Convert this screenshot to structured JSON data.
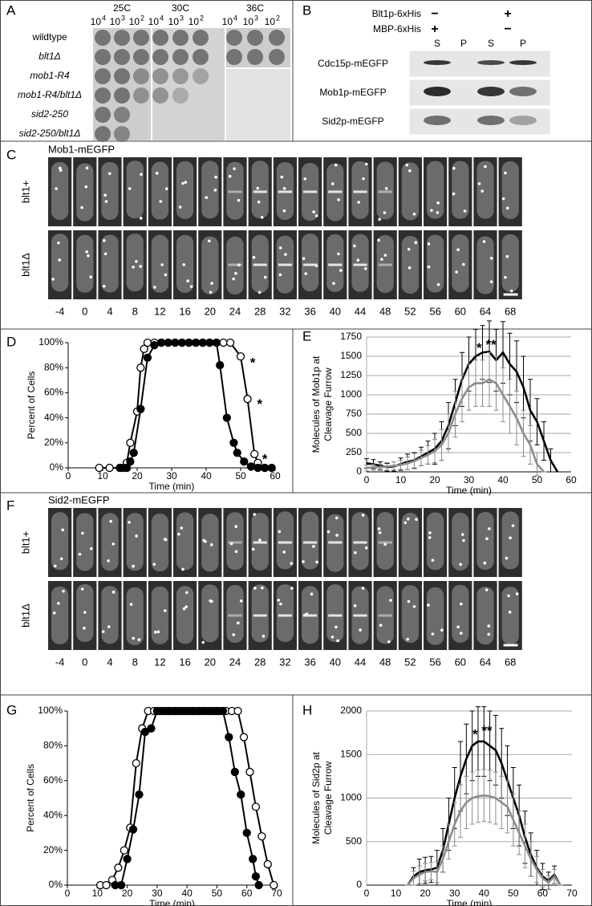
{
  "panel_a": {
    "label": "A",
    "temps": [
      "25C",
      "30C",
      "36C"
    ],
    "dilutions": [
      {
        "base": "10",
        "exp": "4"
      },
      {
        "base": "10",
        "exp": "3"
      },
      {
        "base": "10",
        "exp": "2"
      }
    ],
    "strains": [
      "wildtype",
      "blt1Δ",
      "mob1-R4",
      "mob1-R4/blt1Δ",
      "sid2-250",
      "sid2-250/blt1Δ"
    ]
  },
  "panel_b": {
    "label": "B",
    "conditions": [
      {
        "name": "Blt1p-6xHis",
        "states": [
          "−",
          "+"
        ]
      },
      {
        "name": "MBP-6xHis",
        "states": [
          "+",
          "−"
        ]
      }
    ],
    "fractions": [
      "S",
      "P",
      "S",
      "P"
    ],
    "blots": [
      "Cdc15p-mEGFP",
      "Mob1p-mEGFP",
      "Sid2p-mEGFP"
    ]
  },
  "panel_c": {
    "label": "C",
    "title": "Mob1-mEGFP",
    "rows": [
      "blt1+",
      "blt1Δ"
    ],
    "times": [
      -4,
      0,
      4,
      8,
      12,
      16,
      20,
      24,
      28,
      32,
      36,
      40,
      44,
      48,
      52,
      56,
      60,
      64,
      68
    ]
  },
  "panel_f": {
    "label": "F",
    "title": "Sid2-mEGFP",
    "rows": [
      "blt1+",
      "blt1Δ"
    ],
    "times": [
      -4,
      0,
      4,
      8,
      12,
      16,
      20,
      24,
      28,
      32,
      36,
      40,
      44,
      48,
      52,
      56,
      60,
      64,
      68
    ]
  },
  "chart_data": [
    {
      "label": "D",
      "type": "line",
      "xlabel": "Time (min)",
      "ylabel": "Percent of Cells",
      "xlim": [
        0,
        60
      ],
      "xticks": [
        0,
        10,
        20,
        30,
        40,
        50,
        60
      ],
      "ylim": [
        0,
        100
      ],
      "yticks": [
        {
          "value": 0,
          "label": "0%"
        },
        {
          "value": 20,
          "label": "20%"
        },
        {
          "value": 40,
          "label": "40%"
        },
        {
          "value": 60,
          "label": "60%"
        },
        {
          "value": 80,
          "label": "80%"
        },
        {
          "value": 100,
          "label": "100%"
        }
      ],
      "series": [
        {
          "marker": "open",
          "color": "#000000",
          "x": [
            9,
            12,
            15,
            17,
            18,
            20,
            21,
            22,
            23,
            25,
            27,
            29,
            31,
            33,
            35,
            37,
            39,
            41,
            43,
            45,
            47,
            50,
            52,
            54,
            55,
            57
          ],
          "values": [
            0,
            0,
            0,
            4,
            20,
            45,
            80,
            95,
            100,
            100,
            100,
            100,
            100,
            100,
            100,
            100,
            100,
            100,
            100,
            100,
            100,
            89,
            55,
            11,
            4,
            0
          ]
        },
        {
          "marker": "filled",
          "color": "#000000",
          "x": [
            15,
            16,
            17,
            18,
            19,
            21,
            23,
            25,
            27,
            29,
            31,
            33,
            35,
            37,
            39,
            41,
            43,
            44,
            46,
            48,
            49,
            51,
            53,
            55,
            57,
            59
          ],
          "values": [
            0,
            0,
            0,
            5,
            12,
            47,
            88,
            98,
            100,
            100,
            100,
            100,
            100,
            100,
            100,
            100,
            100,
            82,
            40,
            20,
            12,
            5,
            1,
            0,
            0,
            0
          ]
        }
      ],
      "annotations": [
        {
          "text": "*",
          "x": 53.5,
          "y": 86
        },
        {
          "text": "*",
          "x": 55.5,
          "y": 53
        },
        {
          "text": "*",
          "x": 57,
          "y": 9
        }
      ]
    },
    {
      "label": "E",
      "type": "line",
      "xlabel": "Time (min)",
      "ylabel_lines": [
        "Molecules of Mob1p at",
        "Cleavage Furrow"
      ],
      "xlim": [
        0,
        60
      ],
      "xticks": [
        0,
        10,
        20,
        30,
        40,
        50,
        60
      ],
      "ylim": [
        0,
        1750
      ],
      "yticks": [
        0,
        250,
        500,
        750,
        1000,
        1250,
        1500,
        1750
      ],
      "grid": true,
      "x": [
        0,
        2,
        4,
        6,
        8,
        10,
        12,
        14,
        16,
        18,
        20,
        22,
        24,
        26,
        28,
        30,
        32,
        34,
        36,
        38,
        40,
        42,
        44,
        46,
        48,
        50,
        52,
        54,
        56
      ],
      "series": [
        {
          "color": "#000000",
          "values": [
            110,
            100,
            80,
            60,
            70,
            100,
            130,
            150,
            200,
            250,
            300,
            400,
            600,
            900,
            1200,
            1400,
            1500,
            1550,
            1560,
            1450,
            1550,
            1400,
            1300,
            1100,
            800,
            650,
            400,
            150,
            0
          ],
          "yerr": [
            60,
            60,
            50,
            50,
            60,
            80,
            100,
            100,
            120,
            150,
            200,
            250,
            300,
            300,
            350,
            350,
            350,
            350,
            400,
            400,
            400,
            400,
            400,
            400,
            400,
            300,
            250,
            150,
            0
          ]
        },
        {
          "color": "#8c8c8c",
          "values": [
            50,
            60,
            60,
            70,
            80,
            90,
            110,
            140,
            180,
            220,
            270,
            350,
            500,
            750,
            950,
            1100,
            1150,
            1150,
            1200,
            1150,
            1000,
            850,
            700,
            500,
            350,
            100,
            0,
            null,
            null
          ],
          "yerr": [
            40,
            40,
            40,
            50,
            50,
            60,
            80,
            100,
            100,
            120,
            150,
            200,
            250,
            300,
            300,
            300,
            300,
            300,
            350,
            350,
            350,
            350,
            350,
            300,
            250,
            150,
            0,
            null,
            null
          ]
        }
      ],
      "annotations": [
        {
          "text": "*",
          "x": 33,
          "y": 1640
        },
        {
          "text": "**",
          "x": 36.5,
          "y": 1680
        }
      ]
    },
    {
      "label": "G",
      "type": "line",
      "xlabel": "Time (min)",
      "ylabel": "Percent of Cells",
      "xlim": [
        0,
        70
      ],
      "xticks": [
        0,
        10,
        20,
        30,
        40,
        50,
        60,
        70
      ],
      "ylim": [
        0,
        100
      ],
      "yticks": [
        {
          "value": 0,
          "label": "0%"
        },
        {
          "value": 20,
          "label": "20%"
        },
        {
          "value": 40,
          "label": "40%"
        },
        {
          "value": 60,
          "label": "60%"
        },
        {
          "value": 80,
          "label": "80%"
        },
        {
          "value": 100,
          "label": "100%"
        }
      ],
      "series": [
        {
          "marker": "open",
          "color": "#000000",
          "x": [
            11,
            13,
            15,
            17,
            19,
            21,
            23,
            25,
            27,
            29,
            31,
            33,
            35,
            37,
            39,
            41,
            43,
            45,
            47,
            49,
            51,
            53,
            55,
            57,
            59,
            61,
            63,
            65,
            67,
            69
          ],
          "values": [
            0,
            0,
            3,
            10,
            20,
            33,
            70,
            90,
            100,
            100,
            100,
            100,
            100,
            100,
            100,
            100,
            100,
            100,
            100,
            100,
            100,
            100,
            100,
            100,
            85,
            65,
            45,
            28,
            12,
            0
          ]
        },
        {
          "marker": "filled",
          "color": "#000000",
          "x": [
            16,
            18,
            20,
            22,
            24,
            26,
            28,
            30,
            32,
            34,
            36,
            38,
            40,
            42,
            44,
            46,
            48,
            50,
            52,
            54,
            56,
            58,
            60,
            62,
            63,
            64
          ],
          "values": [
            0,
            0,
            15,
            32,
            52,
            88,
            90,
            100,
            100,
            100,
            100,
            100,
            100,
            100,
            100,
            100,
            100,
            100,
            100,
            85,
            65,
            52,
            30,
            15,
            5,
            0
          ]
        }
      ]
    },
    {
      "label": "H",
      "type": "line",
      "xlabel": "Time (min)",
      "ylabel_lines": [
        "Molecules of Sid2p at",
        "Cleavage Furrow"
      ],
      "xlim": [
        0,
        70
      ],
      "xticks": [
        0,
        10,
        20,
        30,
        40,
        50,
        60,
        70
      ],
      "ylim": [
        0,
        2000
      ],
      "yticks": [
        0,
        500,
        1000,
        1500,
        2000
      ],
      "grid": true,
      "x": [
        14,
        16,
        18,
        20,
        22,
        24,
        26,
        28,
        30,
        32,
        34,
        36,
        38,
        40,
        42,
        44,
        46,
        48,
        50,
        52,
        54,
        56,
        58,
        60,
        62,
        64,
        66
      ],
      "series": [
        {
          "color": "#000000",
          "values": [
            0,
            100,
            150,
            170,
            180,
            200,
            400,
            700,
            1000,
            1250,
            1450,
            1600,
            1650,
            1650,
            1600,
            1550,
            1400,
            1200,
            1000,
            800,
            550,
            350,
            200,
            100,
            50,
            120,
            0
          ],
          "yerr": [
            0,
            100,
            150,
            150,
            150,
            200,
            250,
            300,
            350,
            400,
            400,
            400,
            400,
            400,
            400,
            400,
            400,
            400,
            350,
            350,
            300,
            250,
            200,
            150,
            100,
            100,
            0
          ]
        },
        {
          "color": "#8c8c8c",
          "values": [
            0,
            80,
            120,
            150,
            160,
            150,
            300,
            500,
            700,
            850,
            950,
            1000,
            1020,
            1030,
            1020,
            1000,
            950,
            900,
            750,
            600,
            450,
            300,
            180,
            80,
            30,
            100,
            0
          ],
          "yerr": [
            0,
            80,
            100,
            100,
            100,
            120,
            150,
            200,
            250,
            300,
            300,
            300,
            300,
            300,
            300,
            300,
            300,
            300,
            300,
            250,
            250,
            200,
            150,
            100,
            80,
            80,
            0
          ]
        }
      ],
      "annotations": [
        {
          "text": "*",
          "x": 37,
          "y": 1760
        },
        {
          "text": "**",
          "x": 41,
          "y": 1800
        }
      ]
    }
  ]
}
